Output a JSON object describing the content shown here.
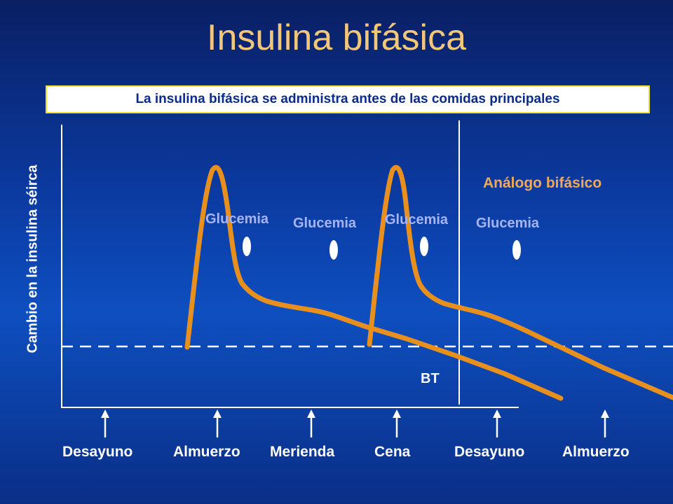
{
  "slide": {
    "title": "Insulina bifásica",
    "subtitle": "La insulina bifásica se administra antes de las comidas principales"
  },
  "chart_data": {
    "type": "line",
    "ylabel": "Cambio en la insulina séirca",
    "xlabel": "",
    "series_label": "Análogo bifásico",
    "baseline_label": "BT",
    "glucose_label": "Glucemia",
    "meals": [
      "Desayuno",
      "Almuerzo",
      "Merienda",
      "Cena",
      "Desayuno",
      "Almuerzo"
    ],
    "glucose_markers": [
      "Glucemia",
      "Glucemia",
      "Glucemia",
      "Glucemia"
    ],
    "colors": {
      "curve": "#e8901e",
      "axis": "#ffffff",
      "baseline": "#ffffff",
      "glucose_marker": "#ffffff",
      "title": "#f2c77a",
      "glucose_text": "#a6b4f2",
      "series_text": "#f0a85a",
      "box_border": "#f0e034",
      "box_text": "#0a2a8e"
    }
  }
}
